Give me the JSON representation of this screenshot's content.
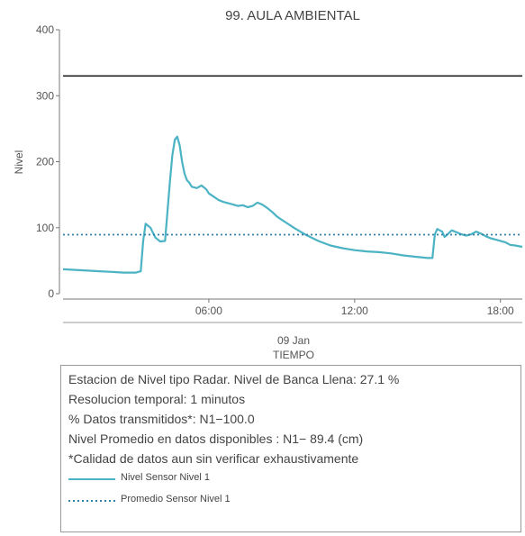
{
  "chart_data": {
    "type": "line",
    "title": "99. AULA AMBIENTAL",
    "ylabel": "Nivel",
    "xlabel": "TIEMPO",
    "date_label": "09 Jan",
    "ylim": [
      0,
      400
    ],
    "yticks": [
      0,
      100,
      200,
      300,
      400
    ],
    "xlim": [
      0.0,
      18.9
    ],
    "xticks": [
      6,
      12,
      18
    ],
    "xtick_labels": [
      "06:00",
      "12:00",
      "18:00"
    ],
    "grid": false,
    "reference_line": {
      "value": 330,
      "color": "#222222"
    },
    "series": [
      {
        "name": "Nivel Sensor Nivel 1",
        "style": "solid",
        "color": "#4bb3c4",
        "x": [
          0.0,
          0.5,
          1.0,
          1.5,
          2.0,
          2.5,
          3.0,
          3.2,
          3.3,
          3.4,
          3.6,
          3.8,
          4.0,
          4.2,
          4.4,
          4.5,
          4.6,
          4.7,
          4.8,
          4.9,
          5.0,
          5.1,
          5.2,
          5.3,
          5.5,
          5.7,
          5.9,
          6.0,
          6.2,
          6.4,
          6.6,
          6.8,
          7.0,
          7.2,
          7.4,
          7.6,
          7.8,
          8.0,
          8.2,
          8.4,
          8.6,
          8.8,
          9.0,
          9.5,
          10.0,
          10.5,
          11.0,
          11.5,
          12.0,
          12.5,
          13.0,
          13.5,
          14.0,
          14.5,
          15.0,
          15.2,
          15.3,
          15.4,
          15.5,
          15.6,
          15.7,
          15.8,
          16.0,
          16.2,
          16.4,
          16.6,
          16.8,
          17.0,
          17.2,
          17.4,
          17.6,
          17.8,
          18.0,
          18.2,
          18.4,
          18.6,
          18.9
        ],
        "y": [
          37,
          36,
          35,
          34,
          33,
          32,
          32,
          34,
          80,
          106,
          100,
          85,
          79,
          80,
          170,
          210,
          233,
          238,
          225,
          200,
          182,
          172,
          168,
          162,
          160,
          164,
          158,
          152,
          147,
          142,
          139,
          137,
          135,
          133,
          134,
          131,
          133,
          138,
          135,
          130,
          124,
          117,
          112,
          100,
          89,
          80,
          73,
          69,
          66,
          64,
          63,
          61,
          58,
          56,
          54,
          54,
          90,
          98,
          96,
          94,
          86,
          89,
          96,
          93,
          90,
          88,
          90,
          94,
          91,
          87,
          84,
          82,
          80,
          78,
          74,
          73,
          71
        ]
      },
      {
        "name": "Promedio Sensor Nivel 1",
        "style": "dotted",
        "color": "#2f7fa8",
        "x": [
          0.0,
          18.9
        ],
        "y": [
          89.4,
          89.4
        ]
      }
    ]
  },
  "info": {
    "line1": "Estacion de Nivel tipo Radar. Nivel de Banca Llena: 27.1 %",
    "line2": "Resolucion temporal: 1 minutos",
    "line3": "% Datos transmitidos*: N1−100.0",
    "line4": "Nivel Promedio en datos disponibles : N1− 89.4 (cm)",
    "line5": "*Calidad de datos aun sin verificar exhaustivamente"
  },
  "legend": {
    "items": [
      {
        "label": "Nivel Sensor Nivel 1",
        "color": "#4bb3c4",
        "style": "solid"
      },
      {
        "label": "Promedio Sensor Nivel 1",
        "color": "#2f7fa8",
        "style": "dotted"
      }
    ]
  }
}
